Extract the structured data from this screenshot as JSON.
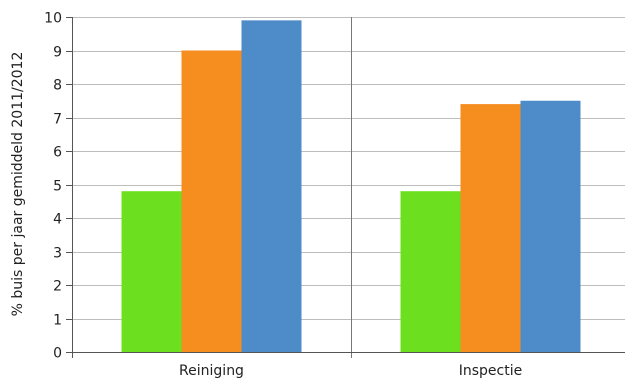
{
  "chart_data": {
    "type": "bar",
    "title": "",
    "xlabel": "",
    "ylabel": "% buis per jaar gemiddeld 2011/2012",
    "categories": [
      "Reiniging",
      "Inspectie"
    ],
    "series": [
      {
        "values": [
          4.8,
          4.8
        ],
        "color": "#6ce01f"
      },
      {
        "values": [
          9.0,
          7.4
        ],
        "color": "#f68d1f"
      },
      {
        "values": [
          9.9,
          7.5
        ],
        "color": "#4e8bc9"
      }
    ],
    "ylim": [
      0,
      10
    ],
    "yticks": [
      "0",
      "1",
      "2",
      "3",
      "4",
      "5",
      "6",
      "7",
      "8",
      "9",
      "10"
    ],
    "grid": true,
    "legend": "none"
  }
}
